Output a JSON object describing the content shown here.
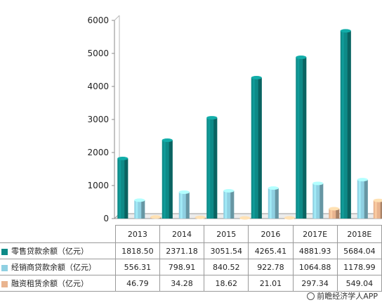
{
  "chart_data": {
    "type": "bar",
    "categories": [
      "2013",
      "2014",
      "2015",
      "2016",
      "2017E",
      "2018E"
    ],
    "series": [
      {
        "name": "零售贷款余额（亿元）",
        "values": [
          1818.5,
          2371.18,
          3051.54,
          4265.41,
          4881.93,
          5684.04
        ],
        "color": "#0e8a87"
      },
      {
        "name": "经销商贷款余额（亿元）",
        "values": [
          556.31,
          798.91,
          840.52,
          922.78,
          1064.88,
          1178.99
        ],
        "color": "#8fd0e2"
      },
      {
        "name": "融资租赁余额（亿元）",
        "values": [
          46.79,
          34.28,
          18.62,
          21.01,
          297.34,
          549.04
        ],
        "color": "#e9b48f"
      }
    ],
    "series_value_labels": [
      [
        "1818.50",
        "2371.18",
        "3051.54",
        "4265.41",
        "4881.93",
        "5684.04"
      ],
      [
        "556.31",
        "798.91",
        "840.52",
        "922.78",
        "1064.88",
        "1178.99"
      ],
      [
        "46.79",
        "34.28",
        "18.62",
        "21.01",
        "297.34",
        "549.04"
      ]
    ],
    "yticks": [
      "0",
      "1000",
      "2000",
      "3000",
      "4000",
      "5000",
      "6000"
    ],
    "ylim": [
      0,
      6000
    ],
    "grid": false,
    "legend": "data table below chart"
  },
  "source": "前瞻经济学人APP"
}
